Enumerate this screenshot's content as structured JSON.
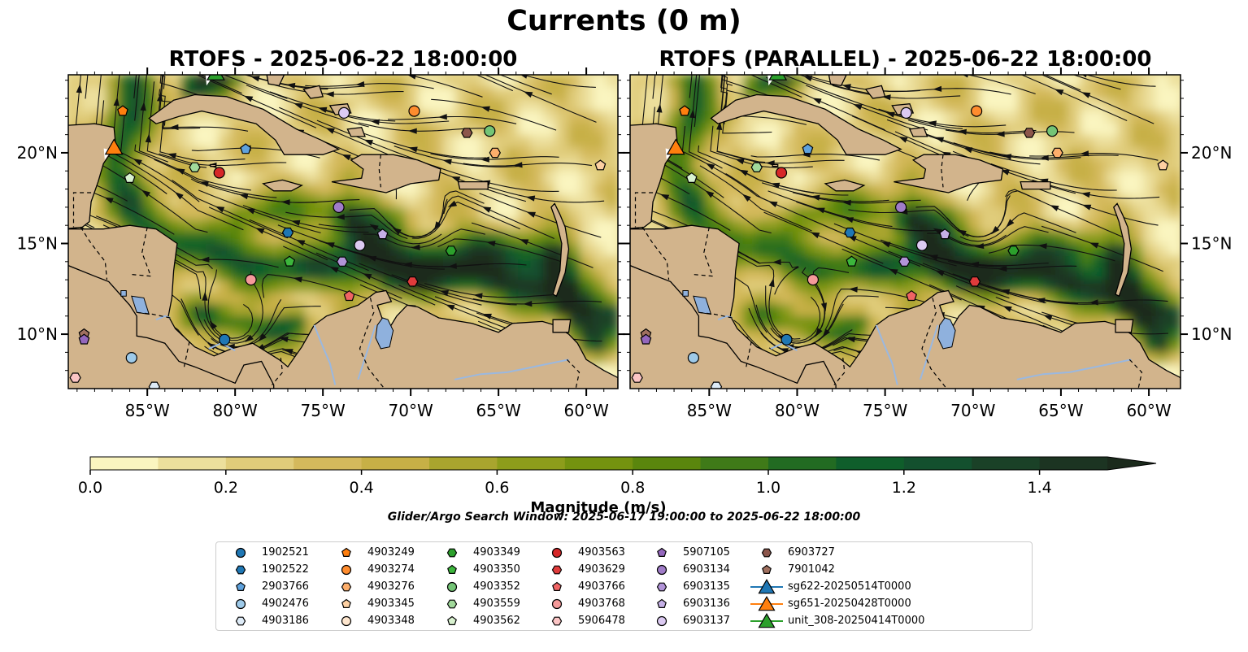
{
  "title": "Currents (0 m)",
  "panels": [
    {
      "title": "RTOFS - 2025-06-22 18:00:00"
    },
    {
      "title": "RTOFS (PARALLEL) - 2025-06-22 18:00:00"
    }
  ],
  "map": {
    "lon_range": [
      -89.5,
      -58.2
    ],
    "lat_range": [
      7.0,
      24.3
    ],
    "x_ticks": [
      "85°W",
      "80°W",
      "75°W",
      "70°W",
      "65°W",
      "60°W"
    ],
    "x_tick_values": [
      -85,
      -80,
      -75,
      -70,
      -65,
      -60
    ],
    "y_ticks": [
      "20°N",
      "15°N",
      "10°N"
    ],
    "y_tick_values": [
      20,
      15,
      10
    ],
    "land_color": "#d2b48c",
    "lake_color": "#8fb1dd",
    "river_color": "#9ab8e0"
  },
  "colorbar": {
    "label": "Magnitude (m/s)",
    "min": 0.0,
    "max": 1.5,
    "ticks": [
      "0.0",
      "0.2",
      "0.4",
      "0.6",
      "0.8",
      "1.0",
      "1.2",
      "1.4"
    ],
    "tick_values": [
      0,
      0.2,
      0.4,
      0.6,
      0.8,
      1.0,
      1.2,
      1.4
    ],
    "extend": "max",
    "colors": [
      "#faf5c0",
      "#ecdf9c",
      "#e0cc7a",
      "#d4b95c",
      "#c7b046",
      "#a9a52e",
      "#8d9d1b",
      "#74920f",
      "#5a860d",
      "#3f7a18",
      "#226b22",
      "#0f5e2b",
      "#13502e",
      "#1a4127",
      "#1c3422",
      "#1b2a1c"
    ]
  },
  "search_window": "Glider/Argo Search Window: 2025-06-17 19:00:00 to 2025-06-22 18:00:00",
  "legend": [
    {
      "label": "1902521",
      "color": "#1f77b4",
      "marker": "circle"
    },
    {
      "label": "1902522",
      "color": "#1f77b4",
      "marker": "hexagon"
    },
    {
      "label": "2903766",
      "color": "#5fa2dd",
      "marker": "pentagon"
    },
    {
      "label": "4902476",
      "color": "#9ecae9",
      "marker": "circle"
    },
    {
      "label": "4903186",
      "color": "#deebf7",
      "marker": "hexagon"
    },
    {
      "label": "4903249",
      "color": "#ff7f0e",
      "marker": "pentagon"
    },
    {
      "label": "4903274",
      "color": "#ff8c2e",
      "marker": "circle"
    },
    {
      "label": "4903276",
      "color": "#fdae6b",
      "marker": "hexagon"
    },
    {
      "label": "4903345",
      "color": "#fdd0a2",
      "marker": "pentagon"
    },
    {
      "label": "4903348",
      "color": "#fee6ce",
      "marker": "circle"
    },
    {
      "label": "4903349",
      "color": "#2ca02c",
      "marker": "hexagon"
    },
    {
      "label": "4903350",
      "color": "#3cb63c",
      "marker": "pentagon"
    },
    {
      "label": "4903352",
      "color": "#74c476",
      "marker": "circle"
    },
    {
      "label": "4903559",
      "color": "#a1d99b",
      "marker": "hexagon"
    },
    {
      "label": "4903562",
      "color": "#d9f2d0",
      "marker": "pentagon"
    },
    {
      "label": "4903563",
      "color": "#d62728",
      "marker": "circle"
    },
    {
      "label": "4903629",
      "color": "#e03b3b",
      "marker": "hexagon"
    },
    {
      "label": "4903766",
      "color": "#f06464",
      "marker": "pentagon"
    },
    {
      "label": "4903768",
      "color": "#f59a9a",
      "marker": "circle"
    },
    {
      "label": "5906478",
      "color": "#fcc5c5",
      "marker": "hexagon"
    },
    {
      "label": "5907105",
      "color": "#9467bd",
      "marker": "pentagon"
    },
    {
      "label": "6903134",
      "color": "#a07cc8",
      "marker": "circle"
    },
    {
      "label": "6903135",
      "color": "#b294d8",
      "marker": "hexagon"
    },
    {
      "label": "6903136",
      "color": "#c5b0e6",
      "marker": "pentagon"
    },
    {
      "label": "6903137",
      "color": "#dccaf2",
      "marker": "circle"
    },
    {
      "label": "6903727",
      "color": "#8c564b",
      "marker": "hexagon"
    },
    {
      "label": "7901042",
      "color": "#a0705f",
      "marker": "pentagon"
    },
    {
      "label": "sg622-20250514T0000",
      "color": "#1f77b4",
      "marker": "triangle"
    },
    {
      "label": "sg651-20250428T0000",
      "color": "#ff7f0e",
      "marker": "triangle"
    },
    {
      "label": "unit_308-20250414T0000",
      "color": "#2ca02c",
      "marker": "triangle"
    }
  ],
  "floats": [
    {
      "id": "4903249",
      "lon": -86.4,
      "lat": 22.3
    },
    {
      "id": "6903137",
      "lon": -73.8,
      "lat": 22.2
    },
    {
      "id": "4903274",
      "lon": -69.8,
      "lat": 22.3
    },
    {
      "id": "6903727",
      "lon": -66.8,
      "lat": 21.1
    },
    {
      "id": "4903352",
      "lon": -65.5,
      "lat": 21.2
    },
    {
      "id": "4903276",
      "lon": -65.2,
      "lat": 20.0
    },
    {
      "id": "4903345",
      "lon": -59.2,
      "lat": 19.3
    },
    {
      "id": "2903766",
      "lon": -79.4,
      "lat": 20.2
    },
    {
      "id": "4903559",
      "lon": -82.3,
      "lat": 19.2
    },
    {
      "id": "4903563",
      "lon": -80.9,
      "lat": 18.9
    },
    {
      "id": "4903562",
      "lon": -86.0,
      "lat": 18.6
    },
    {
      "id": "6903134",
      "lon": -74.1,
      "lat": 17.0
    },
    {
      "id": "1902522",
      "lon": -77.0,
      "lat": 15.6
    },
    {
      "id": "6903136",
      "lon": -71.6,
      "lat": 15.5
    },
    {
      "id": "6903137",
      "lon": -72.9,
      "lat": 14.9
    },
    {
      "id": "4903350",
      "lon": -76.9,
      "lat": 14.0
    },
    {
      "id": "6903135",
      "lon": -73.9,
      "lat": 14.0
    },
    {
      "id": "4903349",
      "lon": -67.7,
      "lat": 14.6
    },
    {
      "id": "4903768",
      "lon": -79.1,
      "lat": 13.0
    },
    {
      "id": "4903629",
      "lon": -69.9,
      "lat": 12.9
    },
    {
      "id": "4903766",
      "lon": -73.5,
      "lat": 12.1
    },
    {
      "id": "1902521",
      "lon": -80.6,
      "lat": 9.7
    },
    {
      "id": "4902476",
      "lon": -85.9,
      "lat": 8.7
    },
    {
      "id": "7901042",
      "lon": -88.6,
      "lat": 10.0
    },
    {
      "id": "5907105",
      "lon": -88.6,
      "lat": 9.7
    },
    {
      "id": "5906478",
      "lon": -89.1,
      "lat": 7.6
    },
    {
      "id": "4903186",
      "lon": -84.6,
      "lat": 7.1
    }
  ],
  "gliders": [
    {
      "id": "sg651-20250428T0000",
      "lon": -86.9,
      "lat": 20.3
    },
    {
      "id": "unit_308-20250414T0000",
      "lon": -81.1,
      "lat": 24.4
    }
  ]
}
